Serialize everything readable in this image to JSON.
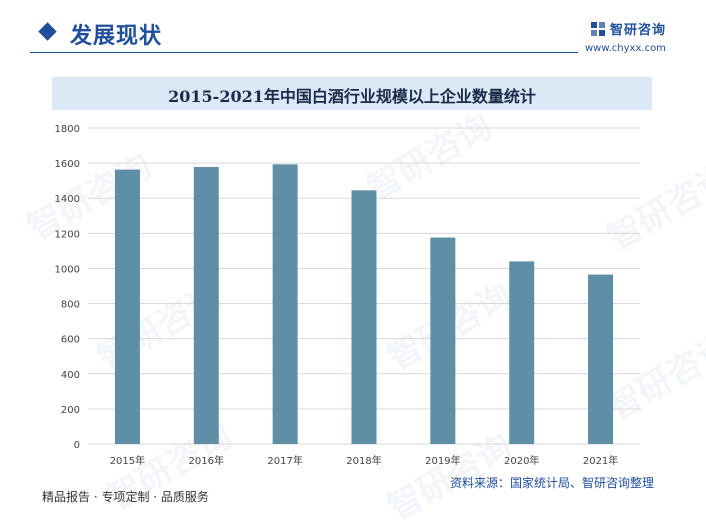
{
  "header": {
    "section_title": "发展现状",
    "brand_name": "智研咨询",
    "brand_url": "www.chyxx.com"
  },
  "chart_data": {
    "type": "bar",
    "title": "2015-2021年中国白酒行业规模以上企业数量统计",
    "categories": [
      "2015年",
      "2016年",
      "2017年",
      "2018年",
      "2019年",
      "2020年",
      "2021年"
    ],
    "values": [
      1563,
      1578,
      1593,
      1445,
      1176,
      1040,
      965
    ],
    "ylim": [
      0,
      1800
    ],
    "yticks": [
      0,
      200,
      400,
      600,
      800,
      1000,
      1200,
      1400,
      1600,
      1800
    ],
    "xlabel": "",
    "ylabel": "",
    "grid": true,
    "bar_color": "#5f8fa6",
    "grid_color": "#d9d9d9"
  },
  "footer": {
    "tagline": "精品报告 · 专项定制 · 品质服务",
    "source": "资料来源：国家统计局、智研咨询整理"
  },
  "watermark": "智研咨询",
  "colors": {
    "accent": "#1f4e9c",
    "title_band": "#dbe8f6"
  }
}
